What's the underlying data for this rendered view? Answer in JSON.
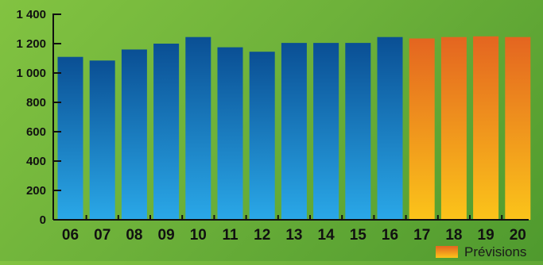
{
  "chart_data": {
    "type": "bar",
    "categories": [
      "06",
      "07",
      "08",
      "09",
      "10",
      "11",
      "12",
      "13",
      "14",
      "15",
      "16",
      "17",
      "18",
      "19",
      "20"
    ],
    "values": [
      1110,
      1085,
      1160,
      1200,
      1245,
      1175,
      1145,
      1205,
      1205,
      1205,
      1245,
      1235,
      1245,
      1250,
      1245
    ],
    "forecast_from_index": 11,
    "ylim": [
      0,
      1400
    ],
    "yticks": [
      0,
      200,
      400,
      600,
      800,
      1000,
      1200,
      1400
    ],
    "ytick_labels": [
      "0",
      "200",
      "400",
      "600",
      "800",
      "1 000",
      "1 200",
      "1 400"
    ],
    "title": "",
    "xlabel": "",
    "ylabel": "",
    "grid": false,
    "legend": {
      "position": "bottom-right",
      "entries": [
        {
          "label": "Prévisions",
          "color": "#f39325"
        }
      ]
    },
    "colors": {
      "actual_top": "#0a4f94",
      "actual_bottom": "#2aa8e8",
      "forecast_top": "#e46520",
      "forecast_bottom": "#fbc41a",
      "axis": "#111111"
    }
  }
}
